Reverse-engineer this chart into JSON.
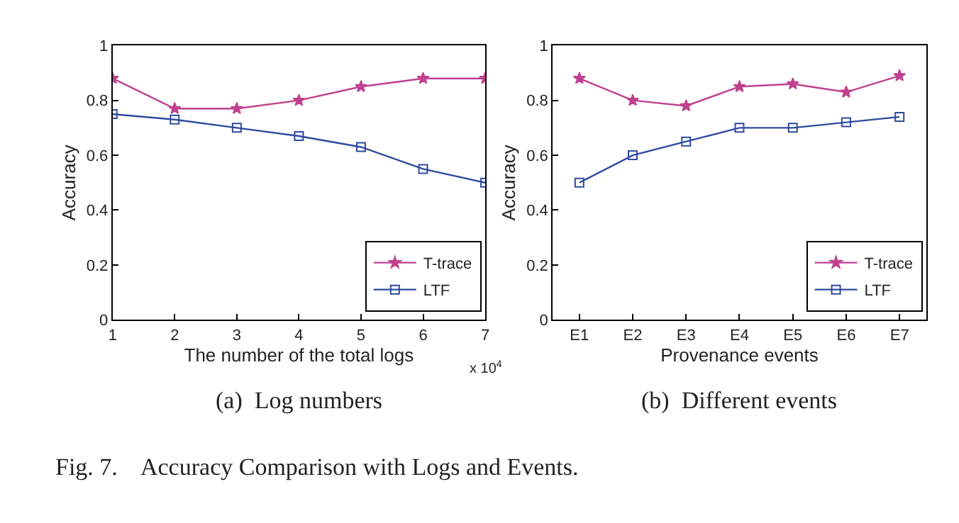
{
  "chart_data": [
    {
      "type": "line",
      "xlabel": "The number of the total logs",
      "ylabel": "Accuracy",
      "x": [
        1,
        2,
        3,
        4,
        5,
        6,
        7
      ],
      "xlim": [
        1,
        7
      ],
      "xticks": [
        1,
        2,
        3,
        4,
        5,
        6,
        7
      ],
      "ylim": [
        0,
        1
      ],
      "yticks": [
        0,
        0.2,
        0.4,
        0.6,
        0.8,
        1
      ],
      "legend": "bottom right",
      "series": [
        {
          "name": "T-trace",
          "color": "#c0408f",
          "marker": "star",
          "values": [
            0.88,
            0.77,
            0.77,
            0.8,
            0.85,
            0.88,
            0.88
          ]
        },
        {
          "name": "LTF",
          "color": "#2f4b9e",
          "marker": "square",
          "values": [
            0.75,
            0.73,
            0.7,
            0.67,
            0.63,
            0.55,
            0.5
          ]
        }
      ],
      "annotations": [
        "x 10$^{4}$",
        "(a)  Log numbers"
      ]
    },
    {
      "type": "line",
      "xlabel": "Provenance events",
      "ylabel": "Accuracy",
      "categories": [
        "E1",
        "E2",
        "E3",
        "E4",
        "E5",
        "E6",
        "E7"
      ],
      "ylim": [
        0,
        1
      ],
      "yticks": [
        0,
        0.2,
        0.4,
        0.6,
        0.8,
        1
      ],
      "legend": "bottom right",
      "series": [
        {
          "name": "T-trace",
          "color": "#c0408f",
          "marker": "star",
          "values": [
            0.88,
            0.8,
            0.78,
            0.85,
            0.86,
            0.83,
            0.89
          ]
        },
        {
          "name": "LTF",
          "color": "#2f4b9e",
          "marker": "square",
          "values": [
            0.5,
            0.6,
            0.65,
            0.7,
            0.7,
            0.72,
            0.74
          ]
        }
      ],
      "annotations": [
        "(b)  Different events",
        "Fig. 7.    Accuracy Comparison with Logs and Events."
      ]
    }
  ]
}
